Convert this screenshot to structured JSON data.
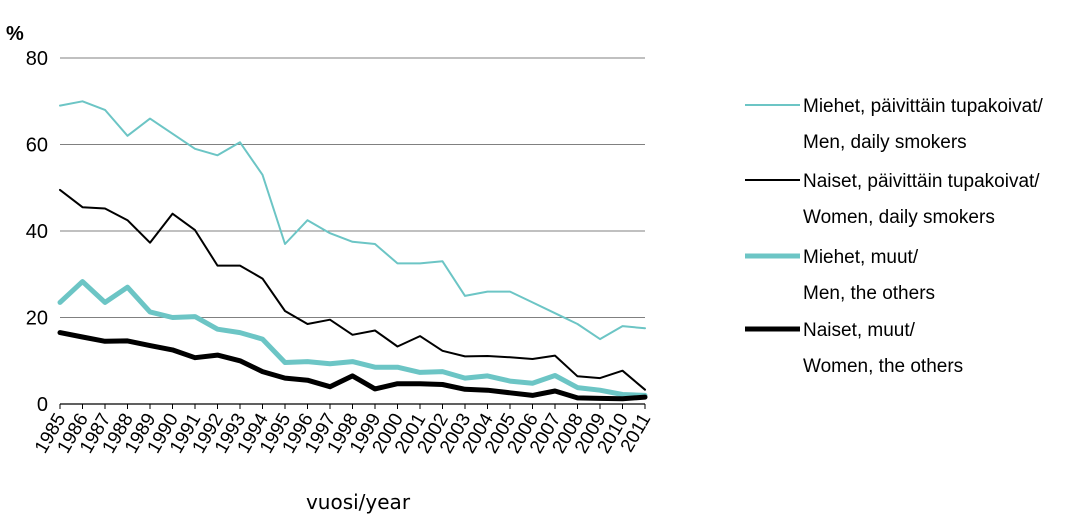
{
  "chart_data": {
    "type": "line",
    "title": "",
    "ylabel": "%",
    "xlabel": "vuosi/year",
    "ylim": [
      0,
      80
    ],
    "yticks": [
      0,
      20,
      40,
      60,
      80
    ],
    "grid": "horizontal",
    "legend_position": "right",
    "x": [
      "1985",
      "1986",
      "1987",
      "1988",
      "1989",
      "1990",
      "1991",
      "1992",
      "1993",
      "1994",
      "1995",
      "1996",
      "1997",
      "1998",
      "1999",
      "2000",
      "2001",
      "2002",
      "2003",
      "2004",
      "2005",
      "2006",
      "2007",
      "2008",
      "2009",
      "2010",
      "2011"
    ],
    "series": [
      {
        "name": "Miehet, päivittäin tupakoivat/",
        "name_line2": "Men, daily smokers",
        "color": "#6cc5c5",
        "style": "thin",
        "values": [
          69,
          70,
          68,
          62,
          66,
          62.5,
          59,
          57.5,
          60.5,
          53,
          37,
          42.5,
          39.5,
          37.5,
          37,
          32.5,
          32.5,
          33,
          25,
          26,
          26,
          23.5,
          21,
          18.5,
          15,
          18,
          17.5
        ]
      },
      {
        "name": "Naiset, päivittäin tupakoivat/",
        "name_line2": "Women, daily smokers",
        "color": "#000000",
        "style": "thin",
        "values": [
          49.5,
          45.5,
          45.2,
          42.5,
          37.3,
          44,
          40.2,
          32,
          32,
          29,
          21.5,
          18.5,
          19.5,
          16,
          17,
          13.3,
          15.7,
          12.3,
          11,
          11.1,
          10.8,
          10.4,
          11.2,
          6.4,
          6,
          7.7,
          3.3
        ]
      },
      {
        "name": "Miehet, muut/",
        "name_line2": "Men, the others",
        "color": "#6cc5c5",
        "style": "thick",
        "values": [
          23.5,
          28.3,
          23.5,
          27,
          21.3,
          20,
          20.2,
          17.3,
          16.5,
          15,
          9.6,
          9.8,
          9.3,
          9.8,
          8.5,
          8.5,
          7.3,
          7.5,
          6,
          6.5,
          5.3,
          4.8,
          6.6,
          3.8,
          3.2,
          2.2,
          2
        ]
      },
      {
        "name": "Naiset, muut/",
        "name_line2": "Women, the others",
        "color": "#000000",
        "style": "thick",
        "values": [
          16.5,
          15.5,
          14.5,
          14.6,
          13.5,
          12.5,
          10.7,
          11.3,
          10,
          7.5,
          6,
          5.5,
          4,
          6.5,
          3.5,
          4.7,
          4.7,
          4.5,
          3.4,
          3.2,
          2.6,
          2,
          3,
          1.4,
          1.3,
          1.2,
          1.6
        ]
      }
    ]
  }
}
